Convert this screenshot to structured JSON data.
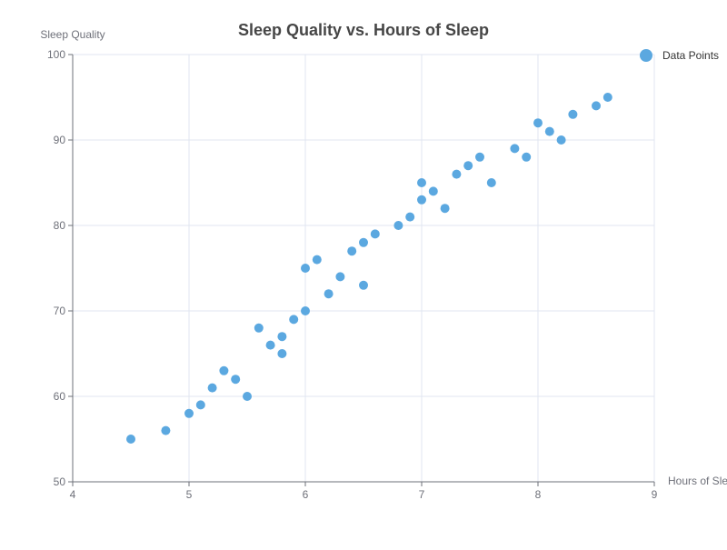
{
  "chart_data": {
    "type": "scatter",
    "title": "Sleep Quality vs. Hours of Sleep",
    "xlabel": "Hours of Sleep",
    "ylabel": "Sleep Quality",
    "xlim": [
      4,
      9
    ],
    "ylim": [
      50,
      100
    ],
    "x_ticks": [
      4,
      5,
      6,
      7,
      8,
      9
    ],
    "y_ticks": [
      50,
      60,
      70,
      80,
      90,
      100
    ],
    "grid": true,
    "legend": {
      "position": "top-right",
      "entries": [
        "Data Points"
      ]
    },
    "colors": {
      "points": "#5ba8e0"
    },
    "series": [
      {
        "name": "Data Points",
        "points": [
          {
            "x": 4.5,
            "y": 55
          },
          {
            "x": 4.8,
            "y": 56
          },
          {
            "x": 5.0,
            "y": 58
          },
          {
            "x": 5.1,
            "y": 59
          },
          {
            "x": 5.2,
            "y": 61
          },
          {
            "x": 5.3,
            "y": 63
          },
          {
            "x": 5.4,
            "y": 62
          },
          {
            "x": 5.5,
            "y": 60
          },
          {
            "x": 5.6,
            "y": 68
          },
          {
            "x": 5.7,
            "y": 66
          },
          {
            "x": 5.8,
            "y": 67
          },
          {
            "x": 5.8,
            "y": 65
          },
          {
            "x": 5.9,
            "y": 69
          },
          {
            "x": 6.0,
            "y": 70
          },
          {
            "x": 6.0,
            "y": 75
          },
          {
            "x": 6.1,
            "y": 76
          },
          {
            "x": 6.2,
            "y": 72
          },
          {
            "x": 6.3,
            "y": 74
          },
          {
            "x": 6.4,
            "y": 77
          },
          {
            "x": 6.5,
            "y": 78
          },
          {
            "x": 6.5,
            "y": 73
          },
          {
            "x": 6.6,
            "y": 79
          },
          {
            "x": 6.8,
            "y": 80
          },
          {
            "x": 6.9,
            "y": 81
          },
          {
            "x": 7.0,
            "y": 83
          },
          {
            "x": 7.0,
            "y": 85
          },
          {
            "x": 7.1,
            "y": 84
          },
          {
            "x": 7.2,
            "y": 82
          },
          {
            "x": 7.3,
            "y": 86
          },
          {
            "x": 7.4,
            "y": 87
          },
          {
            "x": 7.5,
            "y": 88
          },
          {
            "x": 7.6,
            "y": 85
          },
          {
            "x": 7.8,
            "y": 89
          },
          {
            "x": 7.9,
            "y": 88
          },
          {
            "x": 8.0,
            "y": 92
          },
          {
            "x": 8.1,
            "y": 91
          },
          {
            "x": 8.2,
            "y": 90
          },
          {
            "x": 8.3,
            "y": 93
          },
          {
            "x": 8.5,
            "y": 94
          },
          {
            "x": 8.6,
            "y": 95
          }
        ]
      }
    ]
  }
}
